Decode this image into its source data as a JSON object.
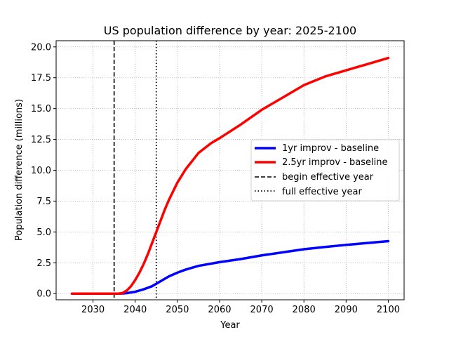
{
  "chart_data": {
    "type": "line",
    "title": "US population difference by year: 2025-2100",
    "xlabel": "Year",
    "ylabel": "Population difference (millions)",
    "xlim": [
      2021.25,
      2103.75
    ],
    "ylim": [
      -0.5,
      20.5
    ],
    "xticks": [
      2030,
      2040,
      2050,
      2060,
      2070,
      2080,
      2090,
      2100
    ],
    "yticks": [
      0.0,
      2.5,
      5.0,
      7.5,
      10.0,
      12.5,
      15.0,
      17.5,
      20.0
    ],
    "xtick_labels": [
      "2030",
      "2040",
      "2050",
      "2060",
      "2070",
      "2080",
      "2090",
      "2100"
    ],
    "ytick_labels": [
      "0.0",
      "2.5",
      "5.0",
      "7.5",
      "10.0",
      "12.5",
      "15.0",
      "17.5",
      "20.0"
    ],
    "grid": true,
    "legend_position": "center-right",
    "series": [
      {
        "name": "1yr improv - baseline",
        "color": "#0000ff",
        "style": "solid",
        "x": [
          2025,
          2030,
          2035,
          2036,
          2037,
          2038,
          2040,
          2042,
          2044,
          2045,
          2046,
          2048,
          2050,
          2052,
          2055,
          2060,
          2065,
          2070,
          2075,
          2080,
          2085,
          2090,
          2095,
          2100
        ],
        "y": [
          0,
          0,
          0,
          0,
          0.01,
          0.04,
          0.15,
          0.35,
          0.6,
          0.8,
          1.0,
          1.4,
          1.7,
          1.95,
          2.25,
          2.55,
          2.8,
          3.1,
          3.35,
          3.6,
          3.78,
          3.95,
          4.1,
          4.25
        ]
      },
      {
        "name": "2.5yr improv - baseline",
        "color": "#ff0000",
        "style": "solid",
        "x": [
          2025,
          2030,
          2035,
          2036,
          2037,
          2038,
          2039,
          2040,
          2041,
          2042,
          2043,
          2044,
          2045,
          2046,
          2047,
          2048,
          2050,
          2052,
          2055,
          2058,
          2060,
          2065,
          2070,
          2075,
          2080,
          2085,
          2090,
          2095,
          2100
        ],
        "y": [
          0,
          0,
          0,
          0,
          0.05,
          0.25,
          0.6,
          1.1,
          1.7,
          2.4,
          3.2,
          4.1,
          5.0,
          5.9,
          6.8,
          7.6,
          9.0,
          10.1,
          11.4,
          12.2,
          12.6,
          13.7,
          14.9,
          15.9,
          16.9,
          17.6,
          18.1,
          18.6,
          19.1
        ]
      }
    ],
    "vlines": [
      {
        "name": "begin effective year",
        "x": 2035,
        "color": "#000000",
        "style": "dashed"
      },
      {
        "name": "full effective year",
        "x": 2045,
        "color": "#000000",
        "style": "dotted"
      }
    ]
  }
}
